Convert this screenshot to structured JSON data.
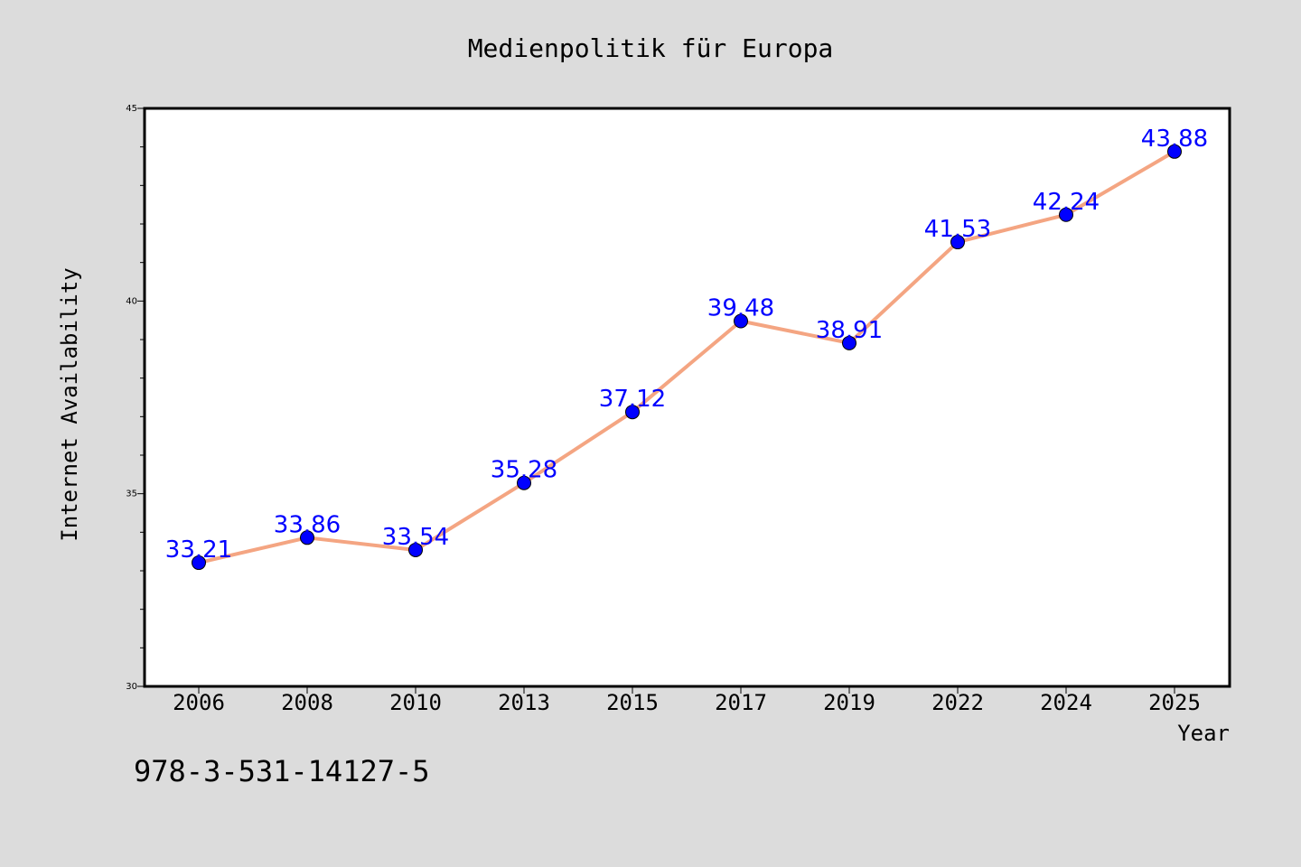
{
  "chart_data": {
    "type": "line",
    "title": "Medienpolitik für Europa",
    "xlabel": "Year",
    "ylabel": "Internet Availability",
    "categories": [
      "2006",
      "2008",
      "2010",
      "2013",
      "2015",
      "2017",
      "2019",
      "2022",
      "2024",
      "2025"
    ],
    "series": [
      {
        "values": [
          33.21,
          33.86,
          33.54,
          35.28,
          37.12,
          39.48,
          38.91,
          41.53,
          42.24,
          43.88
        ],
        "line_color": "#f4a582",
        "marker_color": "#0000ff"
      }
    ],
    "data_labels": [
      "33.21",
      "33.86",
      "33.54",
      "35.28",
      "37.12",
      "39.48",
      "38.91",
      "41.53",
      "42.24",
      "43.88"
    ],
    "data_label_color": "#0000ff",
    "ylim": [
      30,
      45
    ],
    "y_major_ticks": [
      "30",
      "35",
      "40",
      "45"
    ],
    "y_minor_step": 1,
    "grid": false,
    "legend": "none"
  },
  "footer": {
    "isbn": "978-3-531-14127-5"
  },
  "colors": {
    "background": "#dcdcdc",
    "plot_background": "#ffffff",
    "axis": "#000000"
  }
}
